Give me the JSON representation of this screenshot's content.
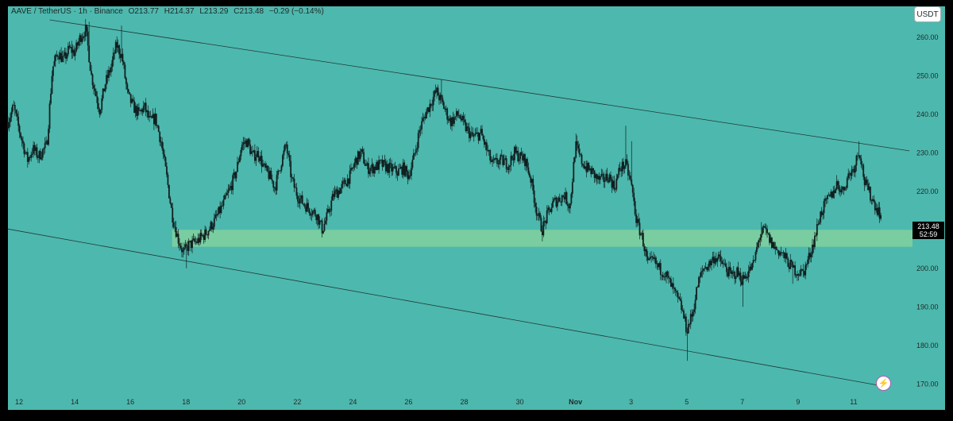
{
  "header": {
    "symbol": "AAVE / TetherUS · 1h · Binance",
    "open": "O213.77",
    "high": "H214.37",
    "low": "L213.29",
    "close": "C213.48",
    "change": "−0.29 (−0.14%)"
  },
  "currency": "USDT",
  "price_tag": {
    "price": "213.48",
    "countdown": "52:59"
  },
  "colors": {
    "background": "#4db8ae",
    "zone": "#7fcf9f",
    "candle": "#102020",
    "trendline": "#1f3a3a"
  },
  "chart_data": {
    "type": "candlestick",
    "title": "",
    "xlabel": "",
    "ylabel": "",
    "ylim": [
      168,
      268
    ],
    "y_ticks": [
      170,
      180,
      190,
      200,
      210,
      220,
      230,
      240,
      250,
      260
    ],
    "y_tick_labels": [
      "170.00",
      "180.00",
      "190.00",
      "200.00",
      "210.00",
      "220.00",
      "230.00",
      "240.00",
      "250.00",
      "260.00"
    ],
    "x_ticks": [
      "12",
      "14",
      "16",
      "18",
      "20",
      "22",
      "24",
      "26",
      "28",
      "30",
      "Nov",
      "3",
      "5",
      "7",
      "9",
      "11"
    ],
    "x_tick_days": [
      12,
      14,
      16,
      18,
      20,
      22,
      24,
      26,
      28,
      30,
      32,
      34,
      36,
      38,
      40,
      42
    ],
    "xlim_days": [
      11.6,
      44.0
    ],
    "grid": false,
    "price_path": [
      [
        11.6,
        238
      ],
      [
        11.8,
        242
      ],
      [
        12.0,
        236
      ],
      [
        12.3,
        228
      ],
      [
        12.5,
        231
      ],
      [
        12.7,
        229
      ],
      [
        13.0,
        232
      ],
      [
        13.2,
        252
      ],
      [
        13.4,
        256
      ],
      [
        13.6,
        254
      ],
      [
        13.8,
        257
      ],
      [
        14.0,
        256
      ],
      [
        14.2,
        260
      ],
      [
        14.4,
        262
      ],
      [
        14.6,
        250
      ],
      [
        14.9,
        241
      ],
      [
        15.1,
        248
      ],
      [
        15.3,
        252
      ],
      [
        15.5,
        258
      ],
      [
        15.7,
        255
      ],
      [
        15.9,
        245
      ],
      [
        16.1,
        242
      ],
      [
        16.3,
        240
      ],
      [
        16.5,
        242
      ],
      [
        16.7,
        238
      ],
      [
        16.9,
        239
      ],
      [
        17.1,
        233
      ],
      [
        17.3,
        224
      ],
      [
        17.5,
        214
      ],
      [
        17.7,
        208
      ],
      [
        17.9,
        204
      ],
      [
        18.1,
        206
      ],
      [
        18.4,
        207
      ],
      [
        18.7,
        209
      ],
      [
        19.0,
        212
      ],
      [
        19.3,
        216
      ],
      [
        19.6,
        221
      ],
      [
        19.8,
        225
      ],
      [
        20.0,
        232
      ],
      [
        20.2,
        233
      ],
      [
        20.4,
        229
      ],
      [
        20.6,
        230
      ],
      [
        20.8,
        226
      ],
      [
        21.0,
        224
      ],
      [
        21.2,
        221
      ],
      [
        21.4,
        227
      ],
      [
        21.6,
        232
      ],
      [
        21.8,
        223
      ],
      [
        22.0,
        219
      ],
      [
        22.2,
        217
      ],
      [
        22.5,
        215
      ],
      [
        22.7,
        214
      ],
      [
        22.9,
        210
      ],
      [
        23.1,
        214
      ],
      [
        23.3,
        219
      ],
      [
        23.6,
        221
      ],
      [
        23.9,
        224
      ],
      [
        24.1,
        228
      ],
      [
        24.3,
        230
      ],
      [
        24.5,
        226
      ],
      [
        24.7,
        226
      ],
      [
        25.0,
        227
      ],
      [
        25.3,
        226
      ],
      [
        25.6,
        225
      ],
      [
        25.8,
        226
      ],
      [
        26.0,
        224
      ],
      [
        26.2,
        229
      ],
      [
        26.4,
        236
      ],
      [
        26.6,
        240
      ],
      [
        26.8,
        243
      ],
      [
        27.0,
        246
      ],
      [
        27.2,
        243
      ],
      [
        27.5,
        238
      ],
      [
        27.8,
        240
      ],
      [
        28.0,
        237
      ],
      [
        28.3,
        234
      ],
      [
        28.6,
        235
      ],
      [
        28.8,
        231
      ],
      [
        29.0,
        227
      ],
      [
        29.3,
        228
      ],
      [
        29.6,
        227
      ],
      [
        29.8,
        230
      ],
      [
        30.0,
        229
      ],
      [
        30.2,
        228
      ],
      [
        30.4,
        223
      ],
      [
        30.6,
        215
      ],
      [
        30.8,
        210
      ],
      [
        31.0,
        214
      ],
      [
        31.2,
        217
      ],
      [
        31.4,
        218
      ],
      [
        31.6,
        219
      ],
      [
        31.8,
        216
      ],
      [
        32.0,
        232
      ],
      [
        32.2,
        228
      ],
      [
        32.4,
        226
      ],
      [
        32.6,
        225
      ],
      [
        32.8,
        223
      ],
      [
        33.0,
        223
      ],
      [
        33.2,
        224
      ],
      [
        33.4,
        221
      ],
      [
        33.6,
        226
      ],
      [
        33.8,
        227
      ],
      [
        34.0,
        222
      ],
      [
        34.2,
        212
      ],
      [
        34.4,
        208
      ],
      [
        34.6,
        201
      ],
      [
        34.8,
        202
      ],
      [
        35.0,
        200
      ],
      [
        35.2,
        199
      ],
      [
        35.4,
        196
      ],
      [
        35.6,
        193
      ],
      [
        35.8,
        190
      ],
      [
        36.0,
        184
      ],
      [
        36.2,
        188
      ],
      [
        36.4,
        196
      ],
      [
        36.6,
        200
      ],
      [
        36.8,
        201
      ],
      [
        37.0,
        203
      ],
      [
        37.2,
        202
      ],
      [
        37.4,
        200
      ],
      [
        37.6,
        198
      ],
      [
        37.8,
        199
      ],
      [
        38.0,
        197
      ],
      [
        38.2,
        199
      ],
      [
        38.4,
        201
      ],
      [
        38.6,
        208
      ],
      [
        38.8,
        210
      ],
      [
        39.0,
        207
      ],
      [
        39.2,
        205
      ],
      [
        39.4,
        204
      ],
      [
        39.6,
        202
      ],
      [
        39.8,
        200
      ],
      [
        40.0,
        199
      ],
      [
        40.2,
        199
      ],
      [
        40.4,
        203
      ],
      [
        40.6,
        208
      ],
      [
        40.8,
        214
      ],
      [
        41.0,
        217
      ],
      [
        41.2,
        219
      ],
      [
        41.4,
        222
      ],
      [
        41.6,
        220
      ],
      [
        41.8,
        224
      ],
      [
        42.0,
        226
      ],
      [
        42.2,
        231
      ],
      [
        42.4,
        222
      ],
      [
        42.6,
        219
      ],
      [
        42.8,
        216
      ],
      [
        43.0,
        213.48
      ]
    ],
    "spikes": [
      [
        14.5,
        264
      ],
      [
        15.7,
        263
      ],
      [
        18.0,
        200
      ],
      [
        22.9,
        208
      ],
      [
        27.2,
        249
      ],
      [
        30.8,
        207
      ],
      [
        32.0,
        235
      ],
      [
        33.8,
        237
      ],
      [
        34.0,
        233
      ],
      [
        36.0,
        176
      ],
      [
        38.0,
        190
      ],
      [
        38.7,
        212
      ],
      [
        39.8,
        196
      ],
      [
        42.2,
        233
      ]
    ],
    "zone": {
      "y_min": 205.6,
      "y_max": 210.0,
      "x_start_day": 17.5
    },
    "trendlines": [
      {
        "x1": 13.1,
        "y1": 264.5,
        "x2": 44.0,
        "y2": 230.5
      },
      {
        "x1": 11.6,
        "y1": 210.2,
        "x2": 43.0,
        "y2": 169.5
      }
    ]
  }
}
